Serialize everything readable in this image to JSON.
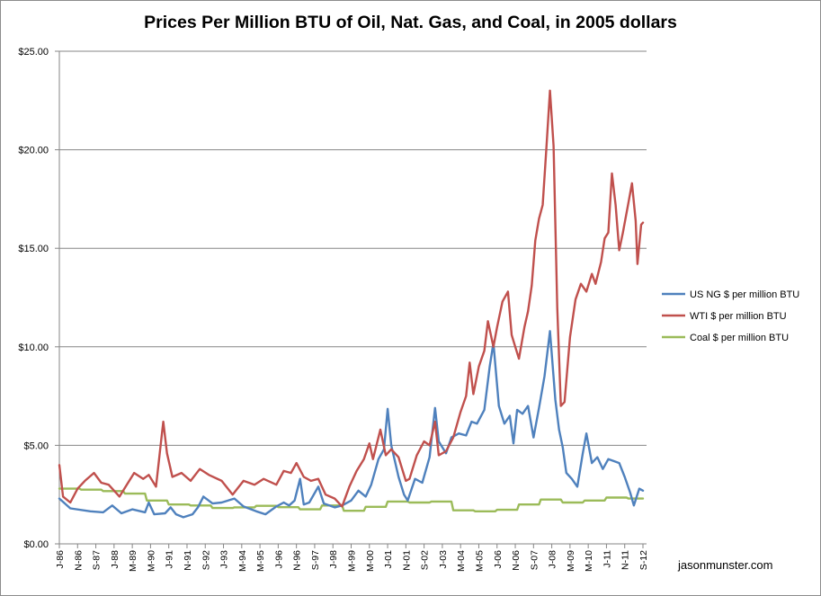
{
  "chart_data": {
    "type": "line",
    "title": "Prices Per Million BTU of Oil, Nat. Gas, and Coal, in 2005 dollars",
    "xlabel": "",
    "ylabel": "",
    "ylim": [
      0,
      25
    ],
    "yticks": [
      "$0.00",
      "$5.00",
      "$10.00",
      "$15.00",
      "$20.00",
      "$25.00"
    ],
    "x_start": "1986-01",
    "x_end": "2012-09",
    "xticks": [
      {
        "label": "J-86",
        "date": "1986-01"
      },
      {
        "label": "N-86",
        "date": "1986-11"
      },
      {
        "label": "S-87",
        "date": "1987-09"
      },
      {
        "label": "J-88",
        "date": "1988-07"
      },
      {
        "label": "M-89",
        "date": "1989-05"
      },
      {
        "label": "M-90",
        "date": "1990-03"
      },
      {
        "label": "J-91",
        "date": "1991-01"
      },
      {
        "label": "N-91",
        "date": "1991-11"
      },
      {
        "label": "S-92",
        "date": "1992-09"
      },
      {
        "label": "J-93",
        "date": "1993-07"
      },
      {
        "label": "M-94",
        "date": "1994-05"
      },
      {
        "label": "M-95",
        "date": "1995-03"
      },
      {
        "label": "J-96",
        "date": "1996-01"
      },
      {
        "label": "N-96",
        "date": "1996-11"
      },
      {
        "label": "S-97",
        "date": "1997-09"
      },
      {
        "label": "J-98",
        "date": "1998-07"
      },
      {
        "label": "M-99",
        "date": "1999-05"
      },
      {
        "label": "M-00",
        "date": "2000-03"
      },
      {
        "label": "J-01",
        "date": "2001-01"
      },
      {
        "label": "N-01",
        "date": "2001-11"
      },
      {
        "label": "S-02",
        "date": "2002-09"
      },
      {
        "label": "J-03",
        "date": "2003-07"
      },
      {
        "label": "M-04",
        "date": "2004-05"
      },
      {
        "label": "M-05",
        "date": "2005-03"
      },
      {
        "label": "J-06",
        "date": "2006-01"
      },
      {
        "label": "N-06",
        "date": "2006-11"
      },
      {
        "label": "S-07",
        "date": "2007-09"
      },
      {
        "label": "J-08",
        "date": "2008-07"
      },
      {
        "label": "M-09",
        "date": "2009-05"
      },
      {
        "label": "M-10",
        "date": "2010-03"
      },
      {
        "label": "J-11",
        "date": "2011-01"
      },
      {
        "label": "N-11",
        "date": "2011-11"
      },
      {
        "label": "S-12",
        "date": "2012-09"
      }
    ],
    "grid": true,
    "legend_position": "right",
    "series": [
      {
        "name": "US NG $ per million BTU",
        "color": "#4f81bd",
        "points": [
          [
            "1986-01",
            2.3
          ],
          [
            "1986-07",
            1.8
          ],
          [
            "1987-06",
            1.65
          ],
          [
            "1988-01",
            1.6
          ],
          [
            "1988-06",
            1.95
          ],
          [
            "1988-11",
            1.55
          ],
          [
            "1989-05",
            1.75
          ],
          [
            "1989-12",
            1.6
          ],
          [
            "1990-02",
            2.1
          ],
          [
            "1990-05",
            1.5
          ],
          [
            "1990-11",
            1.55
          ],
          [
            "1991-02",
            1.85
          ],
          [
            "1991-05",
            1.5
          ],
          [
            "1991-09",
            1.35
          ],
          [
            "1992-02",
            1.5
          ],
          [
            "1992-05",
            1.85
          ],
          [
            "1992-08",
            2.4
          ],
          [
            "1993-01",
            2.05
          ],
          [
            "1993-06",
            2.1
          ],
          [
            "1994-01",
            2.3
          ],
          [
            "1994-06",
            1.9
          ],
          [
            "1995-01",
            1.65
          ],
          [
            "1995-06",
            1.5
          ],
          [
            "1995-12",
            1.9
          ],
          [
            "1996-04",
            2.1
          ],
          [
            "1996-07",
            1.95
          ],
          [
            "1996-10",
            2.2
          ],
          [
            "1997-01",
            3.3
          ],
          [
            "1997-03",
            2.0
          ],
          [
            "1997-06",
            2.1
          ],
          [
            "1997-11",
            2.9
          ],
          [
            "1998-02",
            2.05
          ],
          [
            "1998-08",
            1.85
          ],
          [
            "1998-12",
            1.95
          ],
          [
            "1999-05",
            2.2
          ],
          [
            "1999-09",
            2.7
          ],
          [
            "2000-01",
            2.4
          ],
          [
            "2000-04",
            3.0
          ],
          [
            "2000-08",
            4.3
          ],
          [
            "2000-11",
            4.8
          ],
          [
            "2001-01",
            6.85
          ],
          [
            "2001-03",
            5.0
          ],
          [
            "2001-07",
            3.4
          ],
          [
            "2001-10",
            2.5
          ],
          [
            "2001-12",
            2.2
          ],
          [
            "2002-04",
            3.3
          ],
          [
            "2002-08",
            3.1
          ],
          [
            "2002-12",
            4.4
          ],
          [
            "2003-03",
            6.9
          ],
          [
            "2003-05",
            5.2
          ],
          [
            "2003-09",
            4.6
          ],
          [
            "2003-12",
            5.4
          ],
          [
            "2004-04",
            5.6
          ],
          [
            "2004-08",
            5.5
          ],
          [
            "2004-11",
            6.2
          ],
          [
            "2005-02",
            6.1
          ],
          [
            "2005-06",
            6.8
          ],
          [
            "2005-09",
            9.0
          ],
          [
            "2005-11",
            10.2
          ],
          [
            "2006-02",
            7.0
          ],
          [
            "2006-05",
            6.1
          ],
          [
            "2006-08",
            6.5
          ],
          [
            "2006-10",
            5.1
          ],
          [
            "2006-12",
            6.8
          ],
          [
            "2007-03",
            6.6
          ],
          [
            "2007-06",
            7.0
          ],
          [
            "2007-09",
            5.4
          ],
          [
            "2007-12",
            6.9
          ],
          [
            "2008-03",
            8.5
          ],
          [
            "2008-06",
            10.8
          ],
          [
            "2008-09",
            7.3
          ],
          [
            "2008-11",
            5.8
          ],
          [
            "2009-01",
            4.9
          ],
          [
            "2009-03",
            3.6
          ],
          [
            "2009-06",
            3.3
          ],
          [
            "2009-09",
            2.9
          ],
          [
            "2009-12",
            4.6
          ],
          [
            "2010-02",
            5.6
          ],
          [
            "2010-05",
            4.1
          ],
          [
            "2010-08",
            4.4
          ],
          [
            "2010-11",
            3.8
          ],
          [
            "2011-02",
            4.3
          ],
          [
            "2011-05",
            4.2
          ],
          [
            "2011-08",
            4.1
          ],
          [
            "2011-11",
            3.4
          ],
          [
            "2012-02",
            2.6
          ],
          [
            "2012-04",
            1.95
          ],
          [
            "2012-07",
            2.8
          ],
          [
            "2012-09",
            2.7
          ]
        ]
      },
      {
        "name": "WTI $ per million BTU",
        "color": "#c0504d",
        "points": [
          [
            "1986-01",
            4.0
          ],
          [
            "1986-03",
            2.4
          ],
          [
            "1986-07",
            2.1
          ],
          [
            "1986-11",
            2.8
          ],
          [
            "1987-03",
            3.2
          ],
          [
            "1987-08",
            3.6
          ],
          [
            "1987-12",
            3.1
          ],
          [
            "1988-04",
            3.0
          ],
          [
            "1988-10",
            2.4
          ],
          [
            "1989-02",
            3.0
          ],
          [
            "1989-06",
            3.6
          ],
          [
            "1989-11",
            3.3
          ],
          [
            "1990-02",
            3.5
          ],
          [
            "1990-06",
            2.9
          ],
          [
            "1990-09",
            5.4
          ],
          [
            "1990-10",
            6.2
          ],
          [
            "1990-12",
            4.6
          ],
          [
            "1991-03",
            3.4
          ],
          [
            "1991-08",
            3.6
          ],
          [
            "1992-01",
            3.2
          ],
          [
            "1992-06",
            3.8
          ],
          [
            "1992-11",
            3.5
          ],
          [
            "1993-06",
            3.2
          ],
          [
            "1993-12",
            2.5
          ],
          [
            "1994-06",
            3.2
          ],
          [
            "1994-12",
            3.0
          ],
          [
            "1995-05",
            3.3
          ],
          [
            "1995-12",
            3.0
          ],
          [
            "1996-04",
            3.7
          ],
          [
            "1996-08",
            3.6
          ],
          [
            "1996-11",
            4.1
          ],
          [
            "1997-03",
            3.4
          ],
          [
            "1997-07",
            3.2
          ],
          [
            "1997-11",
            3.3
          ],
          [
            "1998-03",
            2.5
          ],
          [
            "1998-08",
            2.3
          ],
          [
            "1998-12",
            1.9
          ],
          [
            "1999-04",
            2.9
          ],
          [
            "1999-08",
            3.7
          ],
          [
            "1999-12",
            4.3
          ],
          [
            "2000-03",
            5.1
          ],
          [
            "2000-05",
            4.3
          ],
          [
            "2000-09",
            5.8
          ],
          [
            "2000-12",
            4.5
          ],
          [
            "2001-03",
            4.8
          ],
          [
            "2001-07",
            4.4
          ],
          [
            "2001-11",
            3.2
          ],
          [
            "2002-01",
            3.3
          ],
          [
            "2002-05",
            4.5
          ],
          [
            "2002-09",
            5.2
          ],
          [
            "2002-12",
            5.0
          ],
          [
            "2003-03",
            6.2
          ],
          [
            "2003-05",
            4.5
          ],
          [
            "2003-09",
            4.7
          ],
          [
            "2004-01",
            5.4
          ],
          [
            "2004-05",
            6.7
          ],
          [
            "2004-08",
            7.5
          ],
          [
            "2004-10",
            9.2
          ],
          [
            "2004-12",
            7.6
          ],
          [
            "2005-03",
            9.0
          ],
          [
            "2005-06",
            9.8
          ],
          [
            "2005-08",
            11.3
          ],
          [
            "2005-11",
            10.0
          ],
          [
            "2006-01",
            11.0
          ],
          [
            "2006-04",
            12.3
          ],
          [
            "2006-07",
            12.8
          ],
          [
            "2006-09",
            10.6
          ],
          [
            "2006-11",
            10.0
          ],
          [
            "2007-01",
            9.4
          ],
          [
            "2007-04",
            11.0
          ],
          [
            "2007-06",
            11.8
          ],
          [
            "2007-08",
            13.1
          ],
          [
            "2007-10",
            15.4
          ],
          [
            "2007-12",
            16.5
          ],
          [
            "2008-02",
            17.2
          ],
          [
            "2008-04",
            20.0
          ],
          [
            "2008-06",
            23.0
          ],
          [
            "2008-08",
            20.2
          ],
          [
            "2008-10",
            12.0
          ],
          [
            "2008-12",
            7.0
          ],
          [
            "2009-02",
            7.2
          ],
          [
            "2009-05",
            10.5
          ],
          [
            "2009-08",
            12.4
          ],
          [
            "2009-11",
            13.2
          ],
          [
            "2010-02",
            12.8
          ],
          [
            "2010-05",
            13.7
          ],
          [
            "2010-07",
            13.2
          ],
          [
            "2010-10",
            14.3
          ],
          [
            "2010-12",
            15.5
          ],
          [
            "2011-02",
            15.8
          ],
          [
            "2011-04",
            18.8
          ],
          [
            "2011-06",
            17.2
          ],
          [
            "2011-08",
            14.9
          ],
          [
            "2011-10",
            15.8
          ],
          [
            "2012-01",
            17.3
          ],
          [
            "2012-03",
            18.3
          ],
          [
            "2012-05",
            16.4
          ],
          [
            "2012-06",
            14.2
          ],
          [
            "2012-08",
            16.2
          ],
          [
            "2012-09",
            16.3
          ]
        ]
      },
      {
        "name": "Coal $ per million BTU",
        "color": "#9bbb59",
        "points": [
          [
            "1986-01",
            2.8
          ],
          [
            "1986-12",
            2.8
          ],
          [
            "1987-01",
            2.75
          ],
          [
            "1987-12",
            2.75
          ],
          [
            "1988-01",
            2.68
          ],
          [
            "1988-12",
            2.68
          ],
          [
            "1989-01",
            2.55
          ],
          [
            "1989-12",
            2.55
          ],
          [
            "1990-01",
            2.2
          ],
          [
            "1990-12",
            2.2
          ],
          [
            "1991-01",
            2.0
          ],
          [
            "1991-12",
            2.0
          ],
          [
            "1992-01",
            1.95
          ],
          [
            "1992-12",
            1.95
          ],
          [
            "1993-01",
            1.82
          ],
          [
            "1993-12",
            1.82
          ],
          [
            "1994-01",
            1.85
          ],
          [
            "1994-12",
            1.85
          ],
          [
            "1995-01",
            1.93
          ],
          [
            "1995-12",
            1.93
          ],
          [
            "1996-01",
            1.86
          ],
          [
            "1996-12",
            1.86
          ],
          [
            "1997-01",
            1.75
          ],
          [
            "1997-12",
            1.75
          ],
          [
            "1998-01",
            1.95
          ],
          [
            "1998-12",
            1.95
          ],
          [
            "1999-01",
            1.68
          ],
          [
            "1999-12",
            1.68
          ],
          [
            "2000-01",
            1.88
          ],
          [
            "2000-12",
            1.88
          ],
          [
            "2001-01",
            2.15
          ],
          [
            "2001-12",
            2.15
          ],
          [
            "2002-01",
            2.1
          ],
          [
            "2002-12",
            2.1
          ],
          [
            "2003-01",
            2.15
          ],
          [
            "2003-12",
            2.15
          ],
          [
            "2004-01",
            1.7
          ],
          [
            "2004-12",
            1.7
          ],
          [
            "2005-01",
            1.65
          ],
          [
            "2005-12",
            1.65
          ],
          [
            "2006-01",
            1.73
          ],
          [
            "2006-12",
            1.73
          ],
          [
            "2007-01",
            2.0
          ],
          [
            "2007-12",
            2.0
          ],
          [
            "2008-01",
            2.25
          ],
          [
            "2008-12",
            2.25
          ],
          [
            "2009-01",
            2.1
          ],
          [
            "2009-12",
            2.1
          ],
          [
            "2010-01",
            2.2
          ],
          [
            "2010-12",
            2.2
          ],
          [
            "2011-01",
            2.35
          ],
          [
            "2011-12",
            2.35
          ],
          [
            "2012-01",
            2.3
          ],
          [
            "2012-09",
            2.3
          ]
        ]
      }
    ]
  },
  "watermark": "jasonmunster.com"
}
